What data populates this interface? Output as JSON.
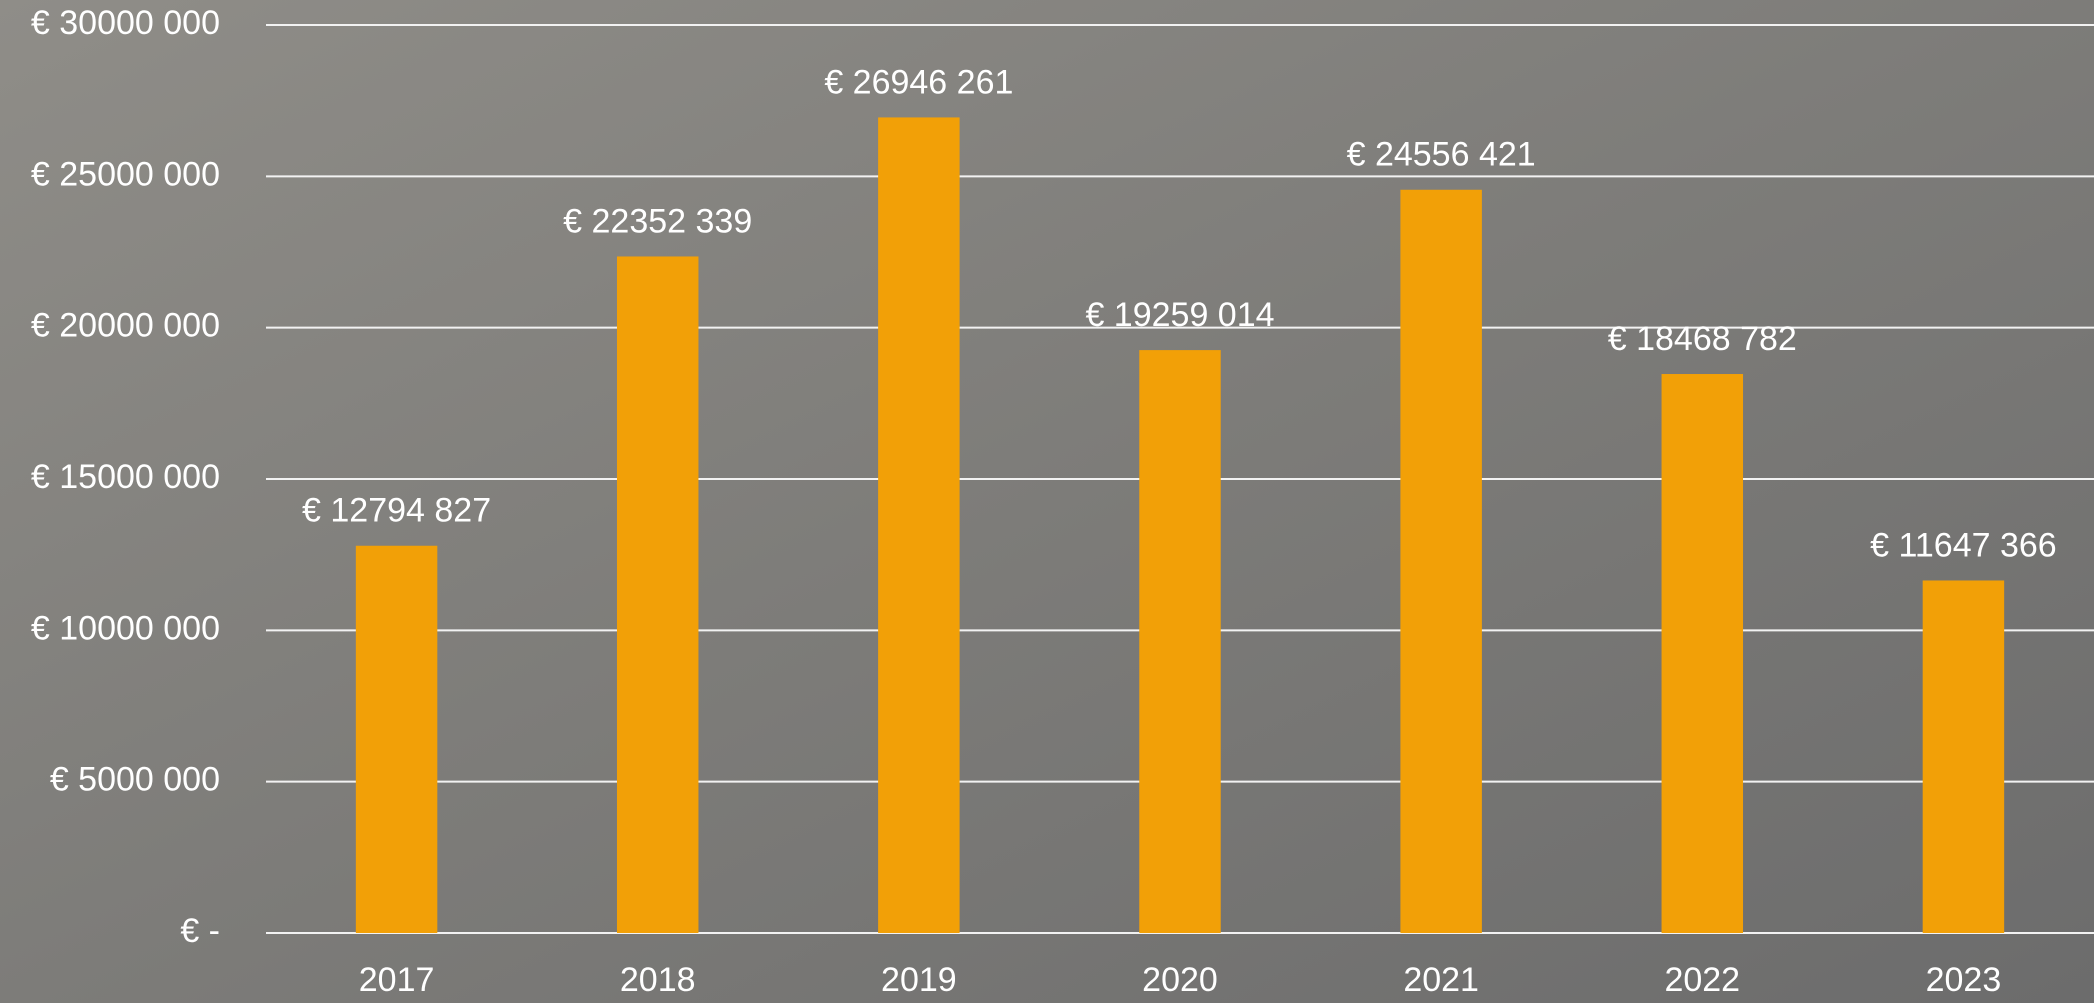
{
  "chart_data": {
    "type": "bar",
    "categories": [
      "2017",
      "2018",
      "2019",
      "2020",
      "2021",
      "2022",
      "2023"
    ],
    "values": [
      12794827,
      22352339,
      26946261,
      19259014,
      24556421,
      18468782,
      11647366
    ],
    "value_labels": [
      "€ 12794 827",
      "€ 22352 339",
      "€ 26946 261",
      "€ 19259 014",
      "€ 24556 421",
      "€ 18468 782",
      "€ 11647 366"
    ],
    "color": "#f2a007",
    "ylim": [
      0,
      30000000
    ],
    "yticks": [
      {
        "value": 0,
        "label": "€ -"
      },
      {
        "value": 5000000,
        "label": "€ 5000 000"
      },
      {
        "value": 10000000,
        "label": "€ 10000 000"
      },
      {
        "value": 15000000,
        "label": "€ 15000 000"
      },
      {
        "value": 20000000,
        "label": "€ 20000 000"
      },
      {
        "value": 25000000,
        "label": "€ 25000 000"
      },
      {
        "value": 30000000,
        "label": "€ 30000 000"
      }
    ],
    "grid": true
  }
}
